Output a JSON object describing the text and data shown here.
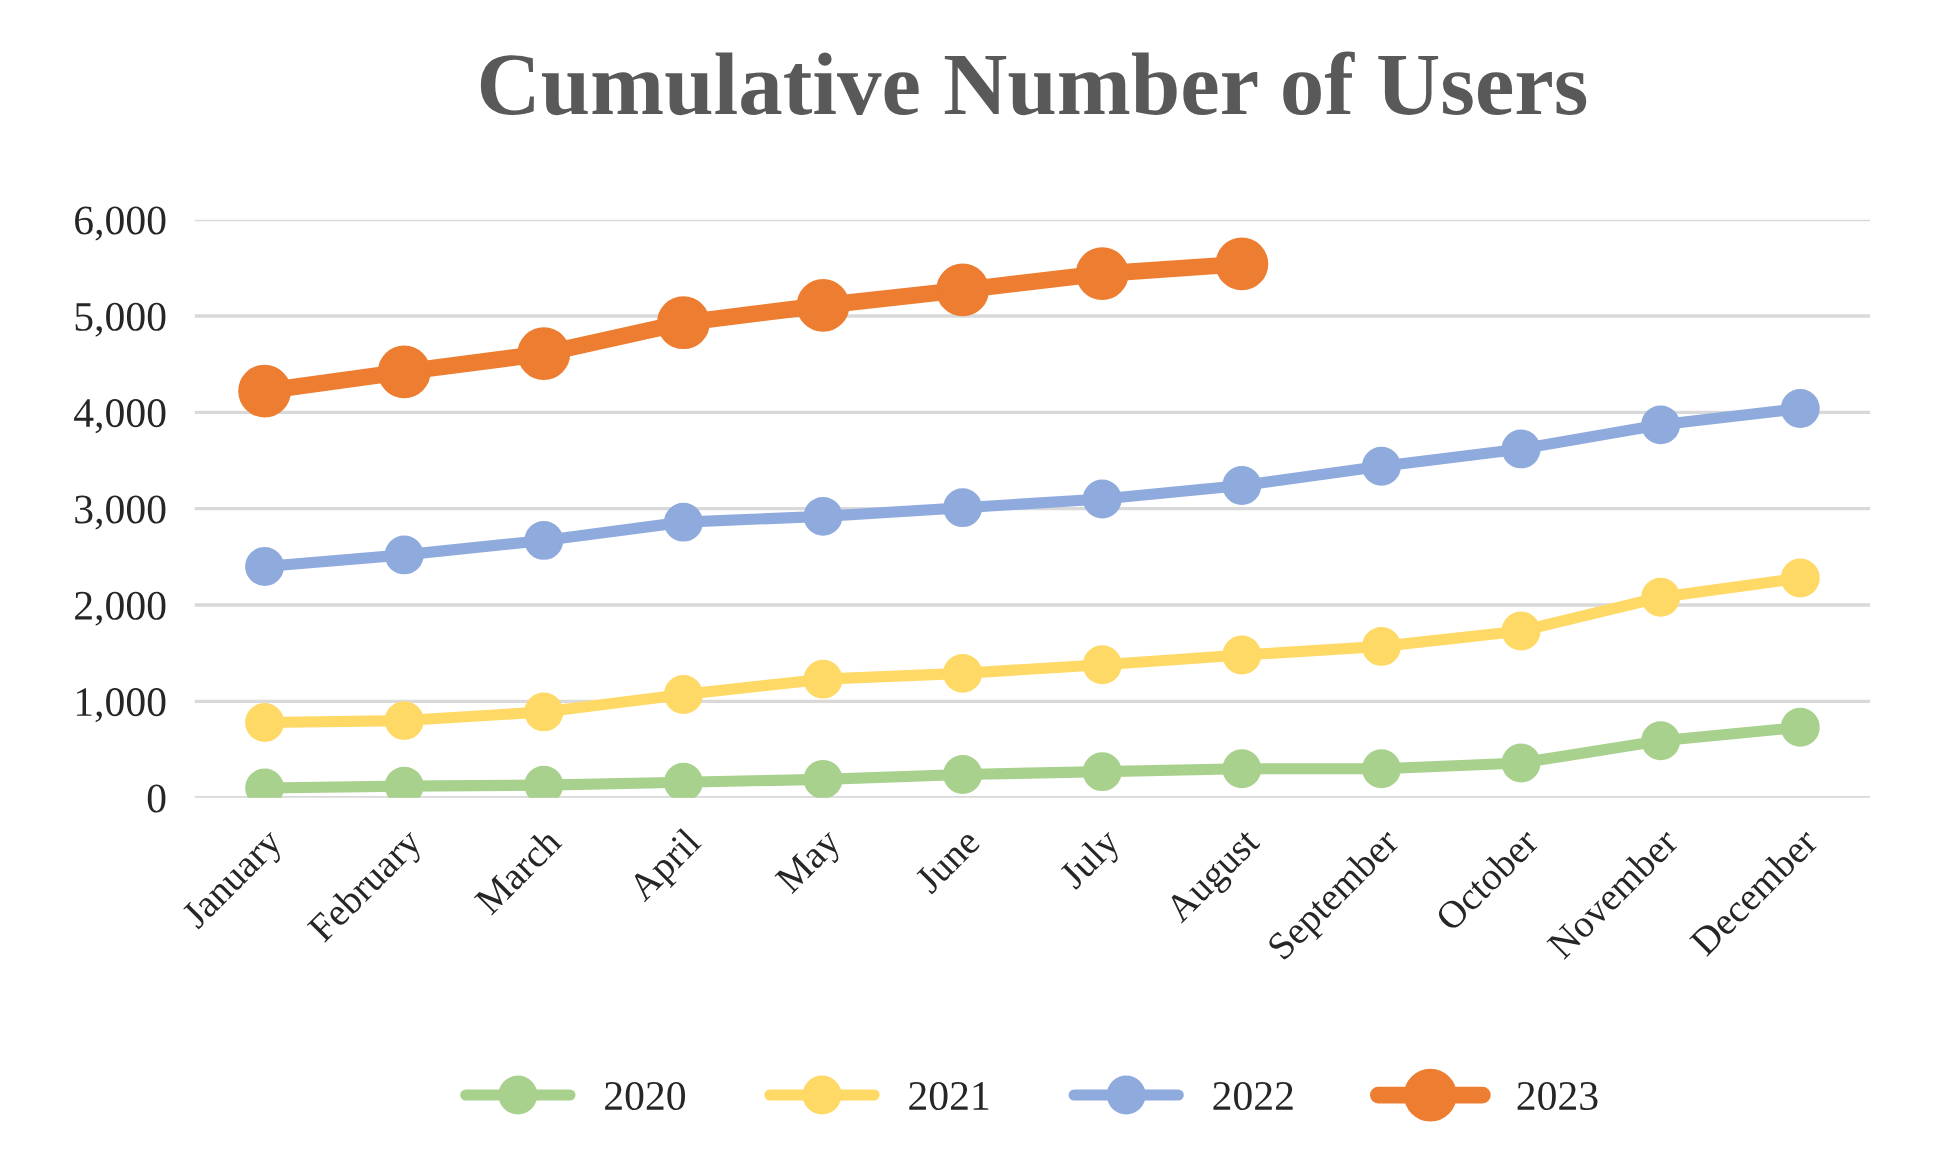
{
  "chart_data": {
    "type": "line",
    "title": "Cumulative Number of Users",
    "categories": [
      "January",
      "February",
      "March",
      "April",
      "May",
      "June",
      "July",
      "August",
      "September",
      "October",
      "November",
      "December"
    ],
    "series": [
      {
        "name": "2020",
        "color": "#a9d18e",
        "values": [
          100,
          120,
          130,
          160,
          190,
          240,
          270,
          300,
          300,
          360,
          590,
          730
        ]
      },
      {
        "name": "2021",
        "color": "#ffd966",
        "values": [
          780,
          800,
          890,
          1070,
          1230,
          1290,
          1380,
          1480,
          1570,
          1730,
          2080,
          2280
        ]
      },
      {
        "name": "2022",
        "color": "#8faadc",
        "values": [
          2400,
          2520,
          2670,
          2860,
          2920,
          3010,
          3100,
          3240,
          3440,
          3620,
          3870,
          4040
        ]
      },
      {
        "name": "2023",
        "color": "#ed7d31",
        "values": [
          4220,
          4420,
          4610,
          4930,
          5110,
          5270,
          5440,
          5540,
          null,
          null,
          null,
          null
        ]
      }
    ],
    "ylim": [
      0,
      6000
    ],
    "yticks": [
      {
        "value": 0,
        "label": "0"
      },
      {
        "value": 1000,
        "label": "1,000"
      },
      {
        "value": 2000,
        "label": "2,000"
      },
      {
        "value": 3000,
        "label": "3,000"
      },
      {
        "value": 4000,
        "label": "4,000"
      },
      {
        "value": 5000,
        "label": "5,000"
      },
      {
        "value": 6000,
        "label": "6,000"
      }
    ],
    "grid": "y",
    "legend": "bottom",
    "marker": "circle",
    "line_style": "solid"
  }
}
